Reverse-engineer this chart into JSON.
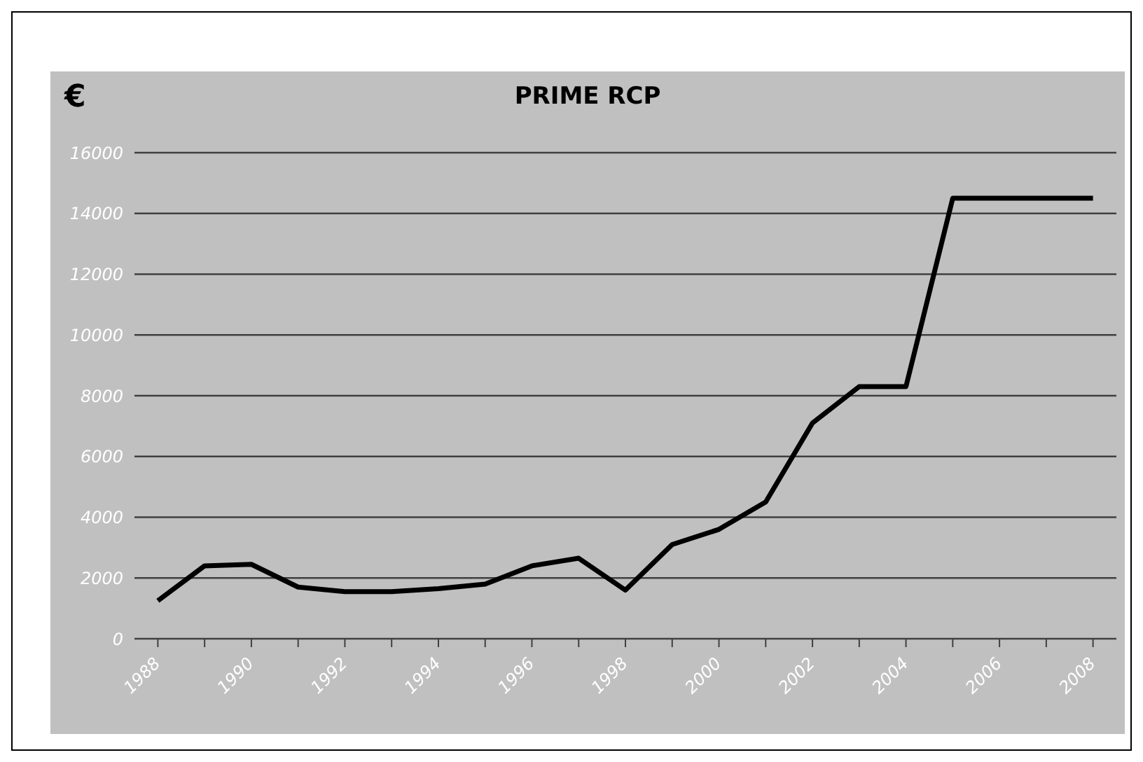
{
  "chart_data": {
    "type": "line",
    "title": "PRIME RCP",
    "ylabel": "€",
    "categories": [
      "1988",
      null,
      "1990",
      null,
      "1992",
      null,
      "1994",
      null,
      "1996",
      null,
      "1998",
      null,
      "2000",
      null,
      "2002",
      null,
      "2004",
      null,
      "2006",
      null,
      "2008"
    ],
    "series": [
      {
        "color": "#000000",
        "values": [
          1250,
          2400,
          2450,
          1700,
          1550,
          1550,
          1650,
          1800,
          2400,
          2650,
          1600,
          3100,
          3600,
          4500,
          7100,
          8300,
          8300,
          14500,
          14500,
          14500,
          14500
        ]
      }
    ],
    "ylim": [
      0,
      16000
    ],
    "yticks": [
      0,
      2000,
      4000,
      6000,
      8000,
      10000,
      12000,
      14000,
      16000
    ],
    "grid": "y",
    "legend": false,
    "marker": "none",
    "line_style": "solid"
  }
}
